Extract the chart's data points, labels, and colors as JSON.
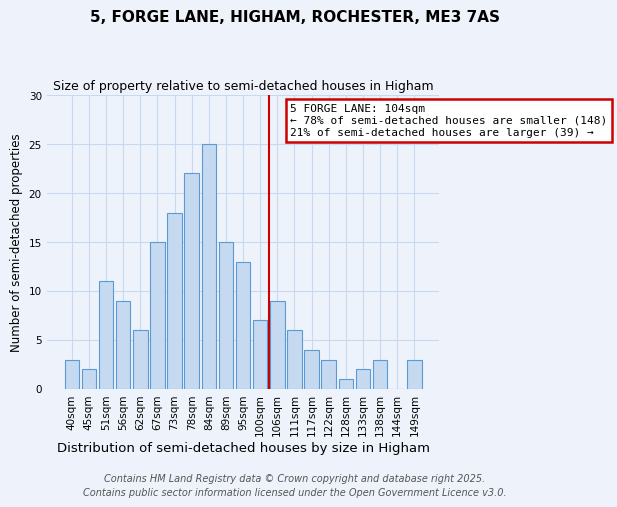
{
  "title": "5, FORGE LANE, HIGHAM, ROCHESTER, ME3 7AS",
  "subtitle": "Size of property relative to semi-detached houses in Higham",
  "xlabel": "Distribution of semi-detached houses by size in Higham",
  "ylabel": "Number of semi-detached properties",
  "categories": [
    "40sqm",
    "45sqm",
    "51sqm",
    "56sqm",
    "62sqm",
    "67sqm",
    "73sqm",
    "78sqm",
    "84sqm",
    "89sqm",
    "95sqm",
    "100sqm",
    "106sqm",
    "111sqm",
    "117sqm",
    "122sqm",
    "128sqm",
    "133sqm",
    "138sqm",
    "144sqm",
    "149sqm"
  ],
  "values": [
    3,
    2,
    11,
    9,
    6,
    15,
    18,
    22,
    25,
    15,
    13,
    7,
    9,
    6,
    4,
    3,
    1,
    2,
    3,
    0,
    3
  ],
  "bar_color": "#c5d9f0",
  "bar_edge_color": "#5b9bd5",
  "annotation_title": "5 FORGE LANE: 104sqm",
  "annotation_line1": "← 78% of semi-detached houses are smaller (148)",
  "annotation_line2": "21% of semi-detached houses are larger (39) →",
  "annotation_box_color": "#ffffff",
  "annotation_box_edge_color": "#cc0000",
  "vline_color": "#cc0000",
  "vline_x": 11.5,
  "ylim": [
    0,
    30
  ],
  "yticks": [
    0,
    5,
    10,
    15,
    20,
    25,
    30
  ],
  "footer1": "Contains HM Land Registry data © Crown copyright and database right 2025.",
  "footer2": "Contains public sector information licensed under the Open Government Licence v3.0.",
  "bg_color": "#eef3fb",
  "grid_color": "#c8d8ee",
  "title_fontsize": 11,
  "subtitle_fontsize": 9,
  "xlabel_fontsize": 9.5,
  "ylabel_fontsize": 8.5,
  "tick_fontsize": 7.5,
  "footer_fontsize": 7,
  "ann_fontsize": 8
}
